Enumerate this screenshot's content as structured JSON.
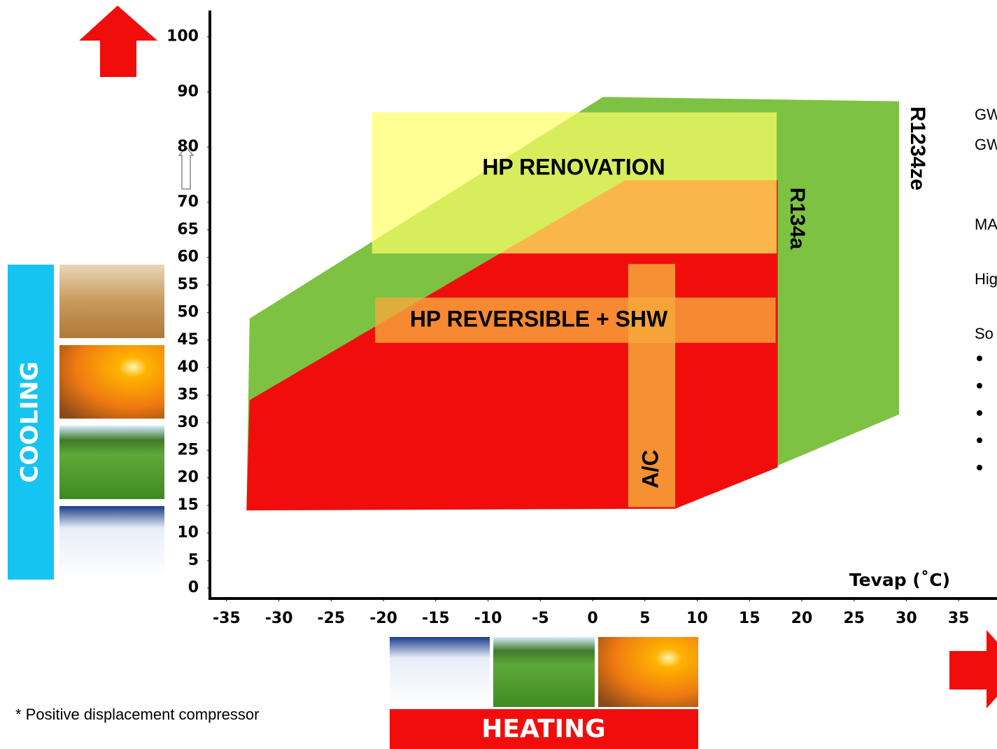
{
  "chart_data": {
    "type": "envelope",
    "x_label": "Tevap (˚C)",
    "xlim": [
      -37,
      38
    ],
    "ylim": [
      -1,
      103
    ],
    "xticks": [
      -35,
      -30,
      -25,
      -20,
      -15,
      -10,
      -5,
      0,
      5,
      10,
      15,
      20,
      25,
      30,
      35
    ],
    "yticks": [
      0,
      5,
      10,
      15,
      20,
      25,
      30,
      35,
      40,
      45,
      50,
      55,
      60,
      65,
      70,
      80,
      90,
      100
    ],
    "regions": [
      {
        "name": "R1234ze",
        "color": "#7dc242",
        "x": [
          -33.1,
          -32.8,
          1.0,
          29.3,
          29.3,
          7.9
        ],
        "y": [
          14.1,
          48.9,
          89.1,
          88.3,
          31.5,
          14.4
        ]
      },
      {
        "name": "R134a",
        "color": "#f20d0d",
        "x": [
          -33.1,
          -32.8,
          3.1,
          17.7,
          17.7,
          7.9
        ],
        "y": [
          14.1,
          34.1,
          74.0,
          74.0,
          21.9,
          14.4
        ]
      },
      {
        "name": "HP RENOVATION",
        "color": "#ffff66",
        "x": [
          -21.1,
          17.6,
          17.6,
          -21.1
        ],
        "y": [
          86.3,
          86.3,
          60.7,
          60.7
        ]
      },
      {
        "name": "HP REVERSIBLE + SHW",
        "color": "#f6a93b",
        "x": [
          -20.8,
          17.5,
          17.5,
          -20.8
        ],
        "y": [
          52.7,
          52.7,
          44.5,
          44.5
        ]
      },
      {
        "name": "A/C",
        "color": "#f6a93b",
        "x": [
          3.4,
          7.9,
          7.9,
          3.4
        ],
        "y": [
          58.8,
          58.8,
          14.7,
          14.7
        ]
      }
    ],
    "cooling_label": "COOLING",
    "heating_label": "HEATING",
    "footnote": "* Positive displacement compressor",
    "side_text": [
      "GW",
      "GW",
      "MA",
      "Hig",
      "So"
    ]
  }
}
